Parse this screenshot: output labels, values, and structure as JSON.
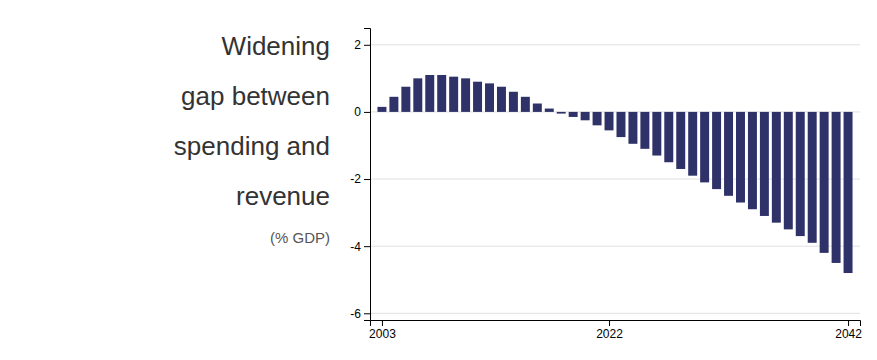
{
  "chart_data": {
    "type": "bar",
    "title": [
      "Widening",
      "gap between",
      "spending and",
      "revenue"
    ],
    "subtitle": "(% GDP)",
    "x": [
      2003,
      2004,
      2005,
      2006,
      2007,
      2008,
      2009,
      2010,
      2011,
      2012,
      2013,
      2014,
      2015,
      2016,
      2017,
      2018,
      2019,
      2020,
      2021,
      2022,
      2023,
      2024,
      2025,
      2026,
      2027,
      2028,
      2029,
      2030,
      2031,
      2032,
      2033,
      2034,
      2035,
      2036,
      2037,
      2038,
      2039,
      2040,
      2041,
      2042
    ],
    "values": [
      0.15,
      0.45,
      0.75,
      1.0,
      1.1,
      1.1,
      1.05,
      1.0,
      0.9,
      0.85,
      0.75,
      0.6,
      0.45,
      0.25,
      0.1,
      -0.05,
      -0.15,
      -0.25,
      -0.4,
      -0.55,
      -0.75,
      -0.95,
      -1.1,
      -1.3,
      -1.5,
      -1.7,
      -1.9,
      -2.1,
      -2.3,
      -2.5,
      -2.7,
      -2.9,
      -3.1,
      -3.3,
      -3.5,
      -3.7,
      -3.9,
      -4.2,
      -4.5,
      -4.8
    ],
    "color": "#2e3268",
    "xlim": [
      2002,
      2043
    ],
    "xticks": [
      2003,
      2022,
      2042
    ],
    "ylim": [
      -6.2,
      2.5
    ],
    "yticks": [
      -6,
      -4,
      -2,
      0,
      2
    ],
    "grid": true
  }
}
